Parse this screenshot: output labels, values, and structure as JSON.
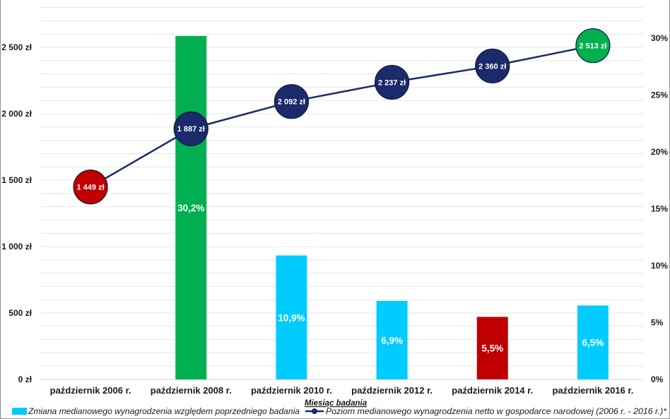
{
  "chart_data": {
    "type": "bar",
    "categories": [
      "październik 2006 r.",
      "październik 2008 r.",
      "październik 2010 r.",
      "październik 2012 r.",
      "październik 2014 r.",
      "październik 2016 r."
    ],
    "series": [
      {
        "name": "Zmiana medianowego wynagrodzenia względem poprzedniego badania",
        "type": "bar",
        "secondary_axis": true,
        "values": [
          null,
          30.2,
          10.9,
          6.9,
          5.5,
          6.5
        ],
        "labels": [
          null,
          "30,2%",
          "10,9%",
          "6,9%",
          "5,5%",
          "6,5%"
        ],
        "color": "#00ccff",
        "point_colors": [
          null,
          "#00b050",
          "#00ccff",
          "#00ccff",
          "#c00000",
          "#00ccff"
        ]
      },
      {
        "name": "Poziom medianowego wynagrodzenia netto w gospodarce narodowej (2006 r. - 2016 r.)*",
        "type": "line",
        "secondary_axis": false,
        "values": [
          1449,
          1887,
          2092,
          2237,
          2360,
          2513
        ],
        "labels": [
          "1 449 zł",
          "1 887 zł",
          "2 092 zł",
          "2 237 zł",
          "2 360 zł",
          "2 513 zł"
        ],
        "color": "#1b2a6b",
        "point_colors": [
          "#c00000",
          "#1b2a6b",
          "#1b2a6b",
          "#1b2a6b",
          "#1b2a6b",
          "#00b050"
        ]
      }
    ],
    "xlabel": "Miesiąc badania",
    "ylim": [
      0,
      2800
    ],
    "y2lim": [
      0,
      32.7
    ],
    "yticks": [
      0,
      500,
      1000,
      1500,
      2000,
      2500
    ],
    "ytick_labels": [
      "0 zł",
      "500 zł",
      "1 000 zł",
      "1 500 zł",
      "2 000 zł",
      "2 500 zł"
    ],
    "y2ticks": [
      0,
      5,
      10,
      15,
      20,
      25,
      30
    ],
    "y2tick_labels": [
      "0%",
      "5%",
      "10%",
      "15%",
      "20%",
      "25%",
      "30%"
    ],
    "grid": true,
    "grid_step": 100,
    "legend_position": "bottom"
  },
  "colors": {
    "text": "#1a1a1a",
    "grid": "#e6e6e6",
    "baseline": "#d0d0d0",
    "marker_stroke": "#12183d",
    "frame": "#8c8c8c"
  }
}
